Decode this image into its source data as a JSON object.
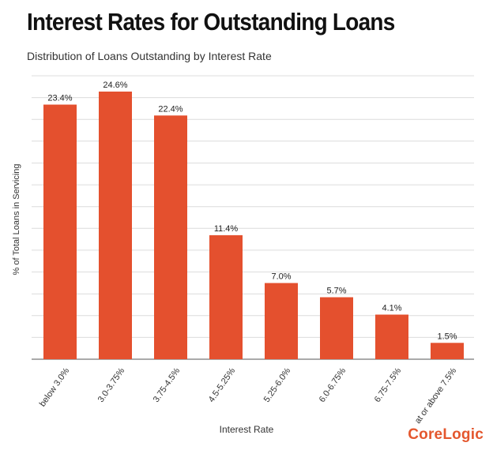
{
  "title": "Interest Rates for Outstanding Loans",
  "subtitle": "Distribution of Loans Outstanding by Interest Rate",
  "brand": "CoreLogic",
  "colors": {
    "bar": "#e4502e",
    "grid": "#dcdcdc",
    "axis": "#555555",
    "brand": "#e4572e"
  },
  "chart_data": {
    "type": "bar",
    "categories": [
      "below 3.0%",
      "3.0-3.75%",
      "3.75-4.5%",
      "4.5-5.25%",
      "5.25-6.0%",
      "6.0-6.75%",
      "6.75-7.5%",
      "at or above 7.5%"
    ],
    "values": [
      23.4,
      24.6,
      22.4,
      11.4,
      7.0,
      5.7,
      4.1,
      1.5
    ],
    "value_labels": [
      "23.4%",
      "24.6%",
      "22.4%",
      "11.4%",
      "7.0%",
      "5.7%",
      "4.1%",
      "1.5%"
    ],
    "xlabel": "Interest Rate",
    "ylabel": "% of Total Loans in Servicing",
    "ylim": [
      0,
      26
    ],
    "grid": true,
    "gridlines": 13
  }
}
